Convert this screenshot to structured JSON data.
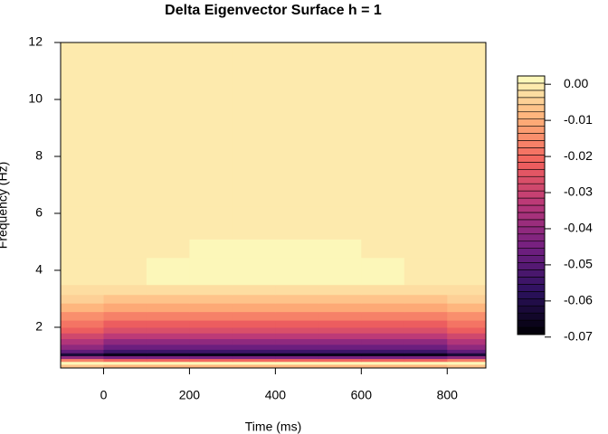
{
  "chart_data": {
    "type": "filled-contour",
    "title": "Delta Eigenvector Surface h = 1",
    "x_label": "Time (ms)",
    "y_label": "Frequency (Hz)",
    "xlim": [
      -100,
      890
    ],
    "xticks": [
      0,
      200,
      400,
      600,
      800
    ],
    "ylim": [
      0.57,
      12
    ],
    "yticks": [
      2,
      4,
      6,
      8,
      10,
      12
    ],
    "zlim": [
      -0.0693,
      0.0023
    ],
    "zticks": [
      {
        "value": 0,
        "label": "0.00"
      },
      {
        "value": -0.01,
        "label": "-0.01"
      },
      {
        "value": -0.02,
        "label": "-0.02"
      },
      {
        "value": -0.03,
        "label": "-0.03"
      },
      {
        "value": -0.04,
        "label": "-0.04"
      },
      {
        "value": -0.05,
        "label": "-0.05"
      },
      {
        "value": -0.06,
        "label": "-0.06"
      },
      {
        "value": -0.07,
        "label": "-0.07"
      }
    ],
    "levels": 36,
    "palette": [
      "#000004",
      "#2c115f",
      "#721f81",
      "#b73779",
      "#f1605d",
      "#feb078",
      "#fcfdbf"
    ],
    "x": [
      -50,
      50,
      150,
      250,
      350,
      450,
      550,
      650,
      750,
      850
    ],
    "y": [
      0.65,
      0.75,
      0.85,
      0.95,
      1.05,
      1.15,
      1.3,
      1.5,
      1.7,
      1.9,
      2.1,
      2.4,
      2.7,
      3.0,
      3.3,
      3.7,
      4.2,
      4.7,
      5.5,
      7,
      9.5,
      11.5
    ],
    "z": [
      [
        -0.007,
        -0.008,
        -0.008,
        -0.008,
        -0.008,
        -0.008,
        -0.008,
        -0.008,
        -0.008,
        -0.007
      ],
      [
        0.001,
        0.001,
        0.001,
        0.001,
        0.001,
        0.001,
        0.001,
        0.001,
        0.001,
        0.001
      ],
      [
        -0.017,
        -0.02,
        -0.02,
        -0.02,
        -0.02,
        -0.02,
        -0.02,
        -0.02,
        -0.02,
        -0.017
      ],
      [
        -0.04,
        -0.045,
        -0.045,
        -0.045,
        -0.045,
        -0.045,
        -0.045,
        -0.045,
        -0.045,
        -0.04
      ],
      [
        -0.062,
        -0.066,
        -0.066,
        -0.066,
        -0.066,
        -0.066,
        -0.066,
        -0.066,
        -0.066,
        -0.062
      ],
      [
        -0.048,
        -0.055,
        -0.055,
        -0.055,
        -0.055,
        -0.055,
        -0.055,
        -0.055,
        -0.055,
        -0.048
      ],
      [
        -0.041,
        -0.047,
        -0.047,
        -0.047,
        -0.047,
        -0.047,
        -0.047,
        -0.047,
        -0.047,
        -0.041
      ],
      [
        -0.035,
        -0.04,
        -0.04,
        -0.04,
        -0.04,
        -0.04,
        -0.04,
        -0.04,
        -0.04,
        -0.035
      ],
      [
        -0.029,
        -0.033,
        -0.033,
        -0.033,
        -0.033,
        -0.033,
        -0.033,
        -0.033,
        -0.033,
        -0.029
      ],
      [
        -0.023,
        -0.027,
        -0.027,
        -0.027,
        -0.027,
        -0.027,
        -0.027,
        -0.027,
        -0.027,
        -0.023
      ],
      [
        -0.019,
        -0.022,
        -0.022,
        -0.022,
        -0.022,
        -0.022,
        -0.022,
        -0.022,
        -0.022,
        -0.019
      ],
      [
        -0.014,
        -0.016,
        -0.016,
        -0.016,
        -0.016,
        -0.016,
        -0.016,
        -0.016,
        -0.016,
        -0.014
      ],
      [
        -0.009,
        -0.01,
        -0.01,
        -0.01,
        -0.01,
        -0.01,
        -0.01,
        -0.01,
        -0.01,
        -0.009
      ],
      [
        -0.005,
        -0.006,
        -0.006,
        -0.006,
        -0.006,
        -0.006,
        -0.006,
        -0.006,
        -0.006,
        -0.005
      ],
      [
        -0.003,
        -0.003,
        -0.003,
        -0.003,
        -0.003,
        -0.003,
        -0.003,
        -0.003,
        -0.003,
        -0.003
      ],
      [
        -0.001,
        -0.001,
        0.0015,
        0.0015,
        0.0015,
        0.0015,
        0.0015,
        0.0015,
        -0.001,
        -0.001
      ],
      [
        -0.001,
        -0.001,
        0.002,
        0.002,
        0.002,
        0.002,
        0.002,
        0.002,
        -0.001,
        -0.001
      ],
      [
        -0.001,
        -0.001,
        -0.001,
        0.001,
        0.001,
        0.001,
        0.001,
        -0.001,
        -0.001,
        -0.001
      ],
      [
        -0.001,
        -0.001,
        -0.001,
        -0.001,
        -0.001,
        -0.001,
        -0.001,
        -0.001,
        -0.001,
        -0.001
      ],
      [
        -0.001,
        -0.001,
        -0.001,
        -0.001,
        -0.001,
        -0.001,
        -0.001,
        -0.001,
        -0.001,
        -0.001
      ],
      [
        -0.001,
        -0.001,
        -0.001,
        -0.001,
        -0.001,
        -0.001,
        -0.001,
        -0.001,
        -0.001,
        -0.001
      ],
      [
        -0.001,
        -0.001,
        -0.001,
        -0.001,
        -0.001,
        -0.001,
        -0.001,
        -0.001,
        -0.001,
        -0.001
      ]
    ]
  }
}
